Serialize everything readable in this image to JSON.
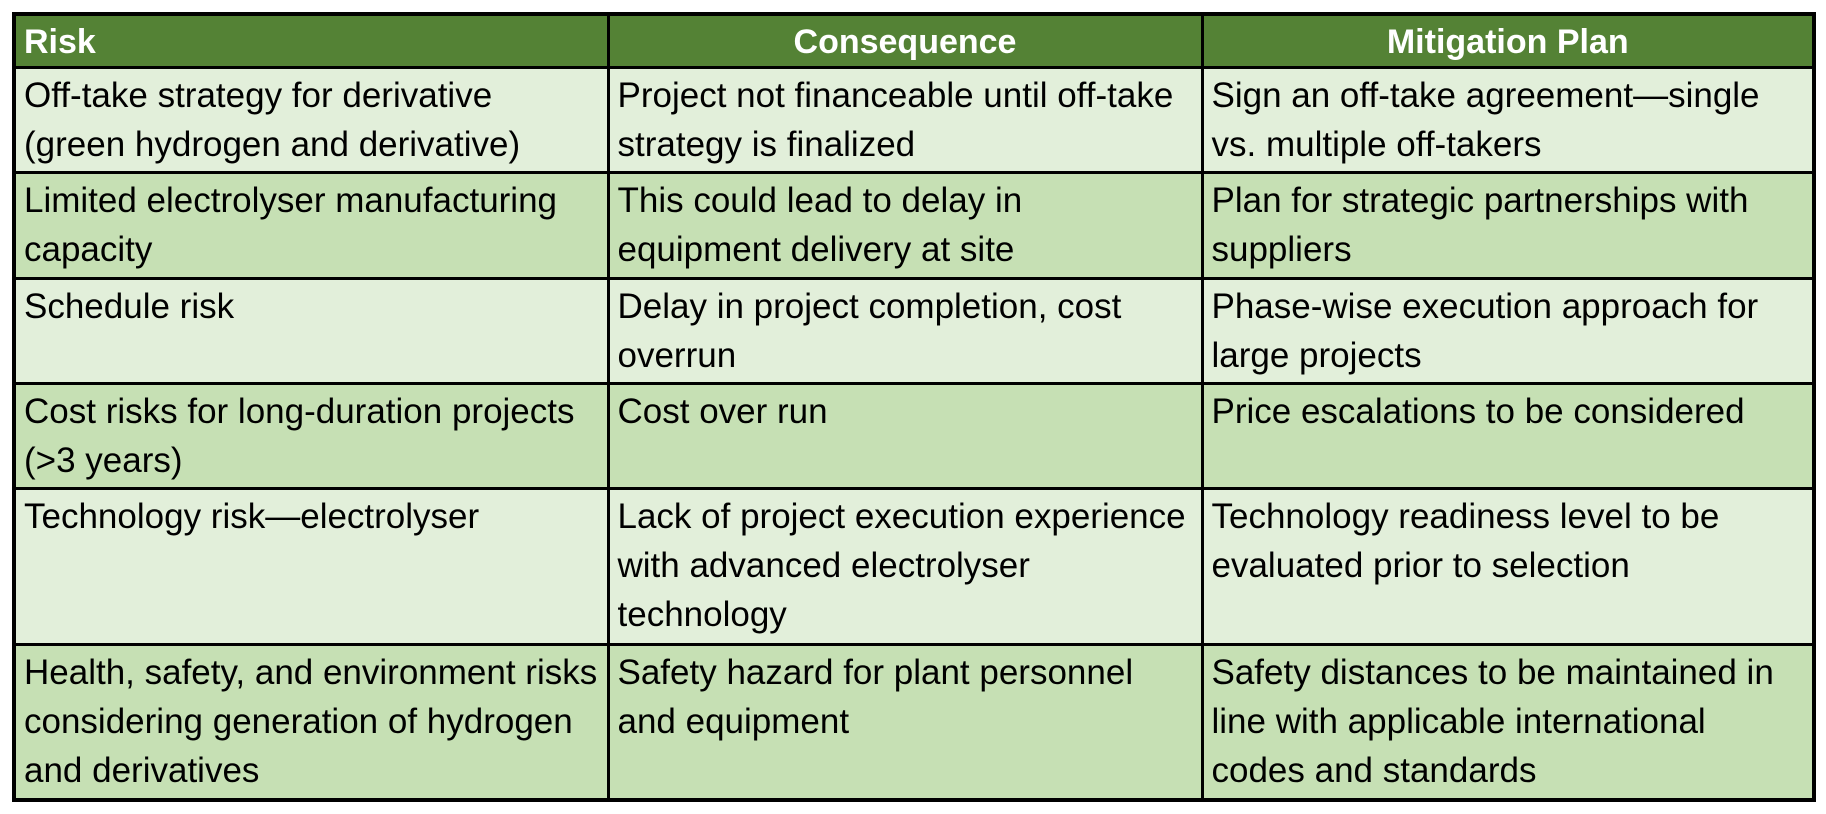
{
  "table": {
    "headers": {
      "risk": "Risk",
      "consequence": "Consequence",
      "mitigation": "Mitigation Plan"
    },
    "rows": [
      {
        "risk": "Off-take strategy for derivative (green hydrogen and derivative)",
        "consequence": "Project not financeable until off-take strategy is finalized",
        "mitigation": "Sign an off-take agreement—single vs. multiple off-takers"
      },
      {
        "risk": "Limited electrolyser manufacturing capacity",
        "consequence": "This could lead to delay in equipment delivery at site",
        "mitigation": "Plan for strategic partnerships with suppliers"
      },
      {
        "risk": "Schedule risk",
        "consequence": "Delay in project completion, cost overrun",
        "mitigation": "Phase-wise execution approach for large projects"
      },
      {
        "risk": "Cost risks for long-duration projects (>3 years)",
        "consequence": "Cost over run",
        "mitigation": "Price escalations to be considered"
      },
      {
        "risk": "Technology risk—electrolyser",
        "consequence": "Lack of project execution experience with advanced electrolyser technology",
        "mitigation": "Technology readiness level to be evaluated prior to selection"
      },
      {
        "risk": "Health, safety, and environment risks considering generation of hydrogen and derivatives",
        "consequence": "Safety hazard for plant personnel and equipment",
        "mitigation": "Safety distances to be maintained in line with applicable international codes and standards"
      }
    ]
  },
  "colors": {
    "header_bg": "#548235",
    "row_light": "#e2efda",
    "row_dark": "#c6e0b4",
    "border": "#000000"
  }
}
